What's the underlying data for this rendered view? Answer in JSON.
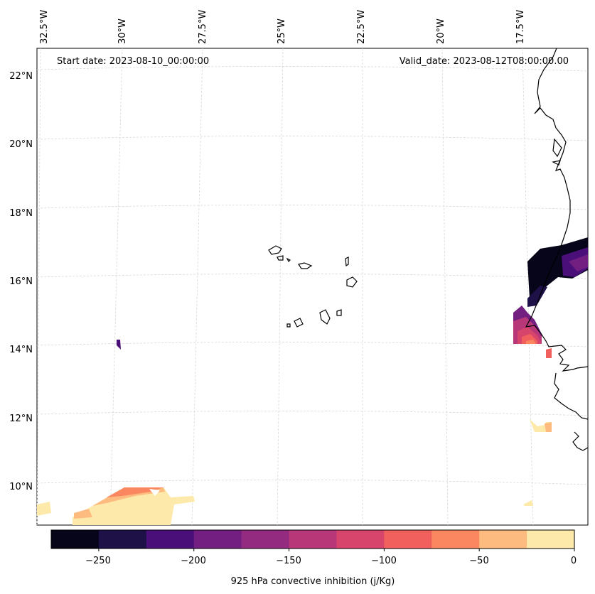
{
  "header": {
    "start_date": "Start date: 2023-08-10_00:00:00",
    "valid_date": "Valid_date: 2023-08-12T08:00:00.00"
  },
  "longitude_labels": [
    "32.5°W",
    "30°W",
    "27.5°W",
    "25°W",
    "22.5°W",
    "20°W",
    "17.5°W"
  ],
  "latitude_labels": [
    "22°N",
    "20°N",
    "18°N",
    "16°N",
    "14°N",
    "12°N",
    "10°N"
  ],
  "colorbar": {
    "label": "925 hPa convective inhibition (j/Kg)",
    "ticks": [
      "−250",
      "−200",
      "−150",
      "−100",
      "−50",
      "0"
    ],
    "levels": [
      -275,
      -250,
      -225,
      -200,
      -175,
      -150,
      -125,
      -100,
      -75,
      -50,
      -25,
      0
    ],
    "colors": [
      "#06051a",
      "#1e1147",
      "#4a0f79",
      "#721f81",
      "#932b80",
      "#b73779",
      "#d8456c",
      "#f1605d",
      "#fb8761",
      "#febb80",
      "#fde9a9"
    ]
  },
  "colors": {
    "coastline": "#000000",
    "gridline": "#d9d9d9"
  }
}
